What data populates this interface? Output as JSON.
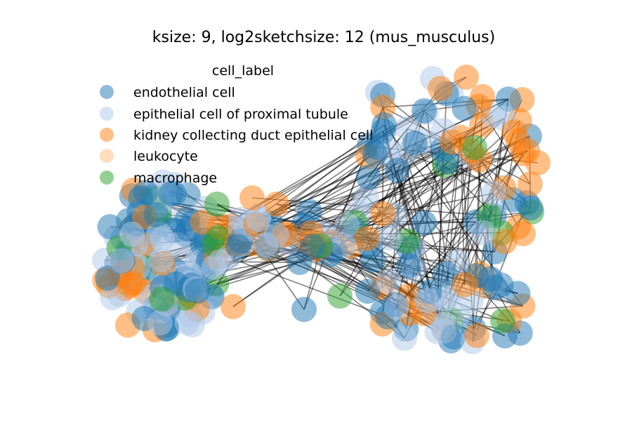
{
  "title": "ksize: 9, log2sketchsize: 12 (mus_musculus)",
  "legend": {
    "title": "cell_label",
    "entries": [
      {
        "label": "endothelial cell",
        "color": "#1f77b4"
      },
      {
        "label": "epithelial cell of proximal tubule",
        "color": "#aec7e8"
      },
      {
        "label": "kidney collecting duct epithelial cell",
        "color": "#ff7f0e"
      },
      {
        "label": "leukocyte",
        "color": "#ffbb78"
      },
      {
        "label": "macrophage",
        "color": "#2ca02c"
      }
    ]
  },
  "style": {
    "node_opacity": 0.5,
    "edge_color": "#000000",
    "edge_opacity": 0.5
  }
}
